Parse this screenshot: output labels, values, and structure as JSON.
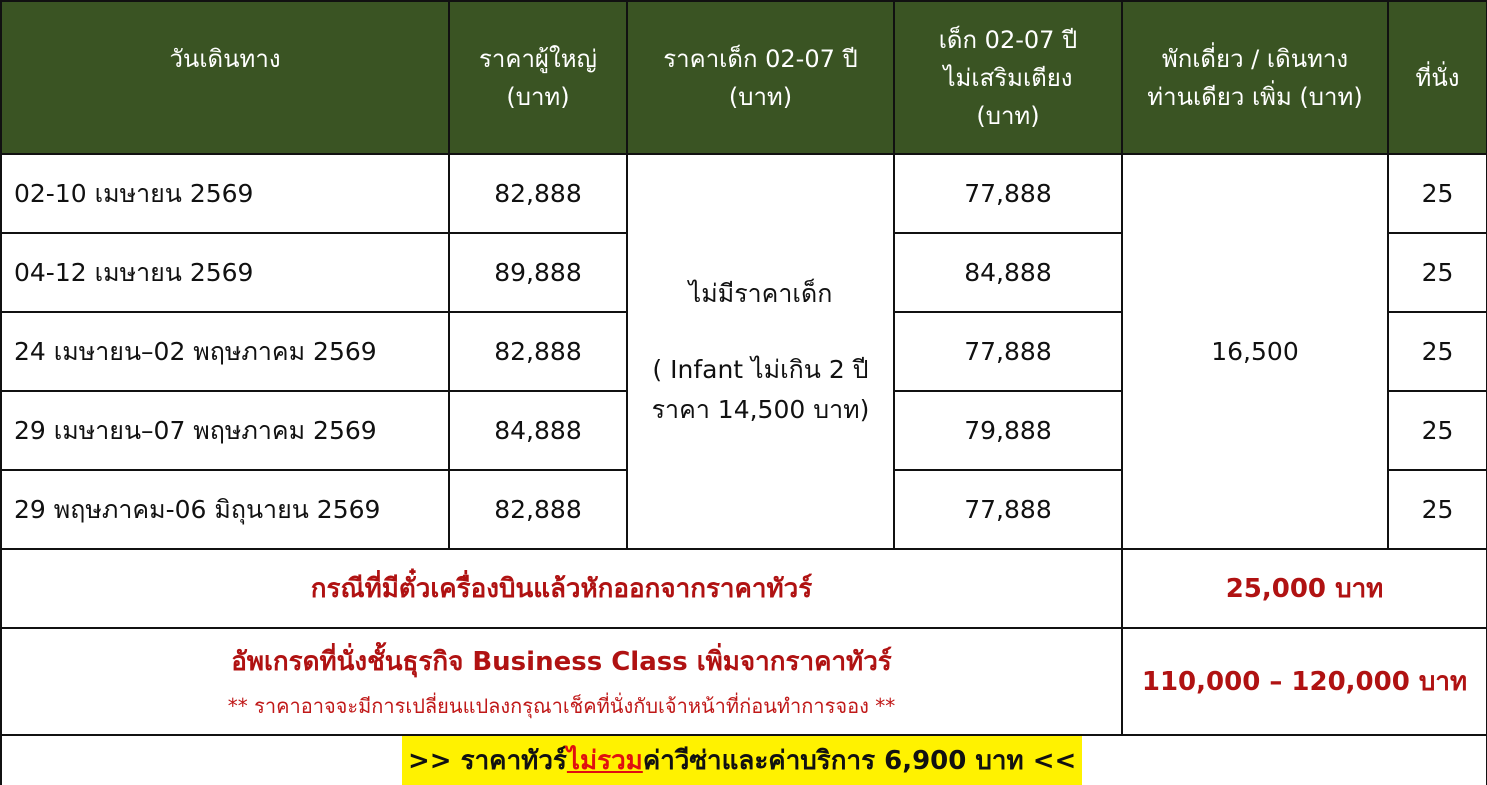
{
  "headers": [
    "วันเดินทาง",
    "ราคาผู้ใหญ่ (บาท)",
    "ราคาเด็ก 02-07 ปี (บาท)",
    "เด็ก 02-07 ปี ไม่เสริมเตียง (บาท)",
    "พักเดี่ยว / เดินทางท่านเดียว เพิ่ม (บาท)",
    "ที่นั่ง"
  ],
  "header_lines": {
    "c0": [
      "วันเดินทาง"
    ],
    "c1": [
      "ราคาผู้ใหญ่",
      "(บาท)"
    ],
    "c2": [
      "ราคาเด็ก 02-07 ปี",
      "(บาท)"
    ],
    "c3": [
      "เด็ก 02-07 ปี",
      "ไม่เสริมเตียง",
      "(บาท)"
    ],
    "c4": [
      "พักเดี่ยว / เดินทาง",
      "ท่านเดียว เพิ่ม (บาท)"
    ],
    "c5": [
      "ที่นั่ง"
    ]
  },
  "rows": [
    {
      "date": "02-10 เมษายน 2569",
      "adult": "82,888",
      "child_no_bed": "77,888",
      "seats": "25"
    },
    {
      "date": "04-12 เมษายน 2569",
      "adult": "89,888",
      "child_no_bed": "84,888",
      "seats": "25"
    },
    {
      "date": "24 เมษายน–02 พฤษภาคม 2569",
      "adult": "82,888",
      "child_no_bed": "77,888",
      "seats": "25"
    },
    {
      "date": "29 เมษายน–07 พฤษภาคม 2569",
      "adult": "84,888",
      "child_no_bed": "79,888",
      "seats": "25"
    },
    {
      "date": "29 พฤษภาคม-06 มิถุนายน 2569",
      "adult": "82,888",
      "child_no_bed": "77,888",
      "seats": "25"
    }
  ],
  "child_price": {
    "line1": "ไม่มีราคาเด็ก",
    "line2": "( Infant ไม่เกิน 2 ปี",
    "line3": "ราคา 14,500  บาท)"
  },
  "single_supplement": "16,500",
  "ticket_deduction": {
    "label": "กรณีที่มีตั๋วเครื่องบินแล้วหักออกจากราคาทัวร์",
    "value": "25,000 บาท"
  },
  "business_upgrade": {
    "label": "อัพเกรดที่นั่งชั้นธุรกิจ Business Class เพิ่มจากราคาทัวร์",
    "note": "** ราคาอาจจะมีการเปลี่ยนแปลงกรุณาเช็คที่นั่งกับเจ้าหน้าที่ก่อนทำการจอง **",
    "value": "110,000 – 120,000 บาท"
  },
  "banner": {
    "prefix": ">> ราคาทัวร์",
    "highlight": "ไม่รวม",
    "suffix": "ค่าวีซ่าและค่าบริการ 6,900 บาท <<"
  },
  "colors": {
    "header_bg": "#3a5423",
    "accent_red": "#b01212",
    "banner_bg": "#fff200"
  }
}
